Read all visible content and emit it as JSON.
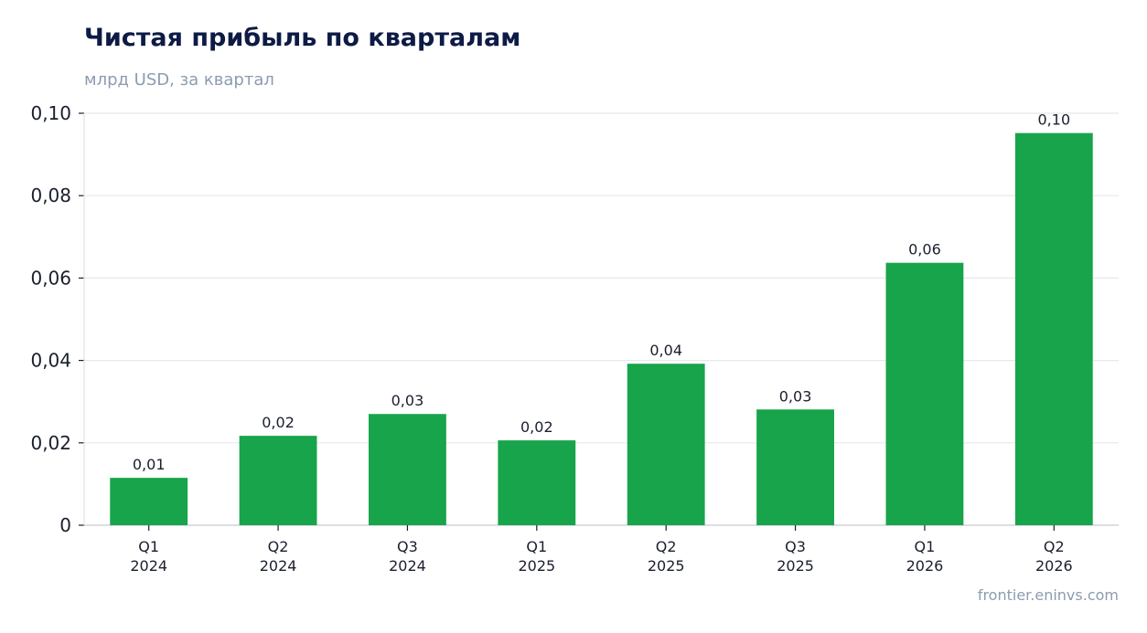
{
  "header": {
    "title": "Чистая прибыль по кварталам",
    "subtitle": "млрд USD, за квартал"
  },
  "footer": {
    "source": "frontier.eninvs.com"
  },
  "colors": {
    "bar": "#18a44a",
    "grid": "#e6e8eb",
    "title": "#0d1b45",
    "muted": "#8c9cb0"
  },
  "chart_data": {
    "type": "bar",
    "title": "Чистая прибыль по кварталам",
    "subtitle": "млрд USD, за квартал",
    "categories": [
      [
        "Q1",
        "2024"
      ],
      [
        "Q2",
        "2024"
      ],
      [
        "Q3",
        "2024"
      ],
      [
        "Q1",
        "2025"
      ],
      [
        "Q2",
        "2025"
      ],
      [
        "Q3",
        "2025"
      ],
      [
        "Q1",
        "2026"
      ],
      [
        "Q2",
        "2026"
      ]
    ],
    "values": [
      0.0115,
      0.0217,
      0.027,
      0.0206,
      0.0392,
      0.0281,
      0.0637,
      0.0952
    ],
    "data_labels": [
      "0,01",
      "0,02",
      "0,03",
      "0,02",
      "0,04",
      "0,03",
      "0,06",
      "0,10"
    ],
    "yticks": [
      0,
      0.02,
      0.04,
      0.06,
      0.08,
      0.1
    ],
    "ytick_labels": [
      "0",
      "0,02",
      "0,04",
      "0,06",
      "0,08",
      "0,10"
    ],
    "ylim": [
      0,
      0.1
    ],
    "grid": true,
    "legend": "none"
  }
}
